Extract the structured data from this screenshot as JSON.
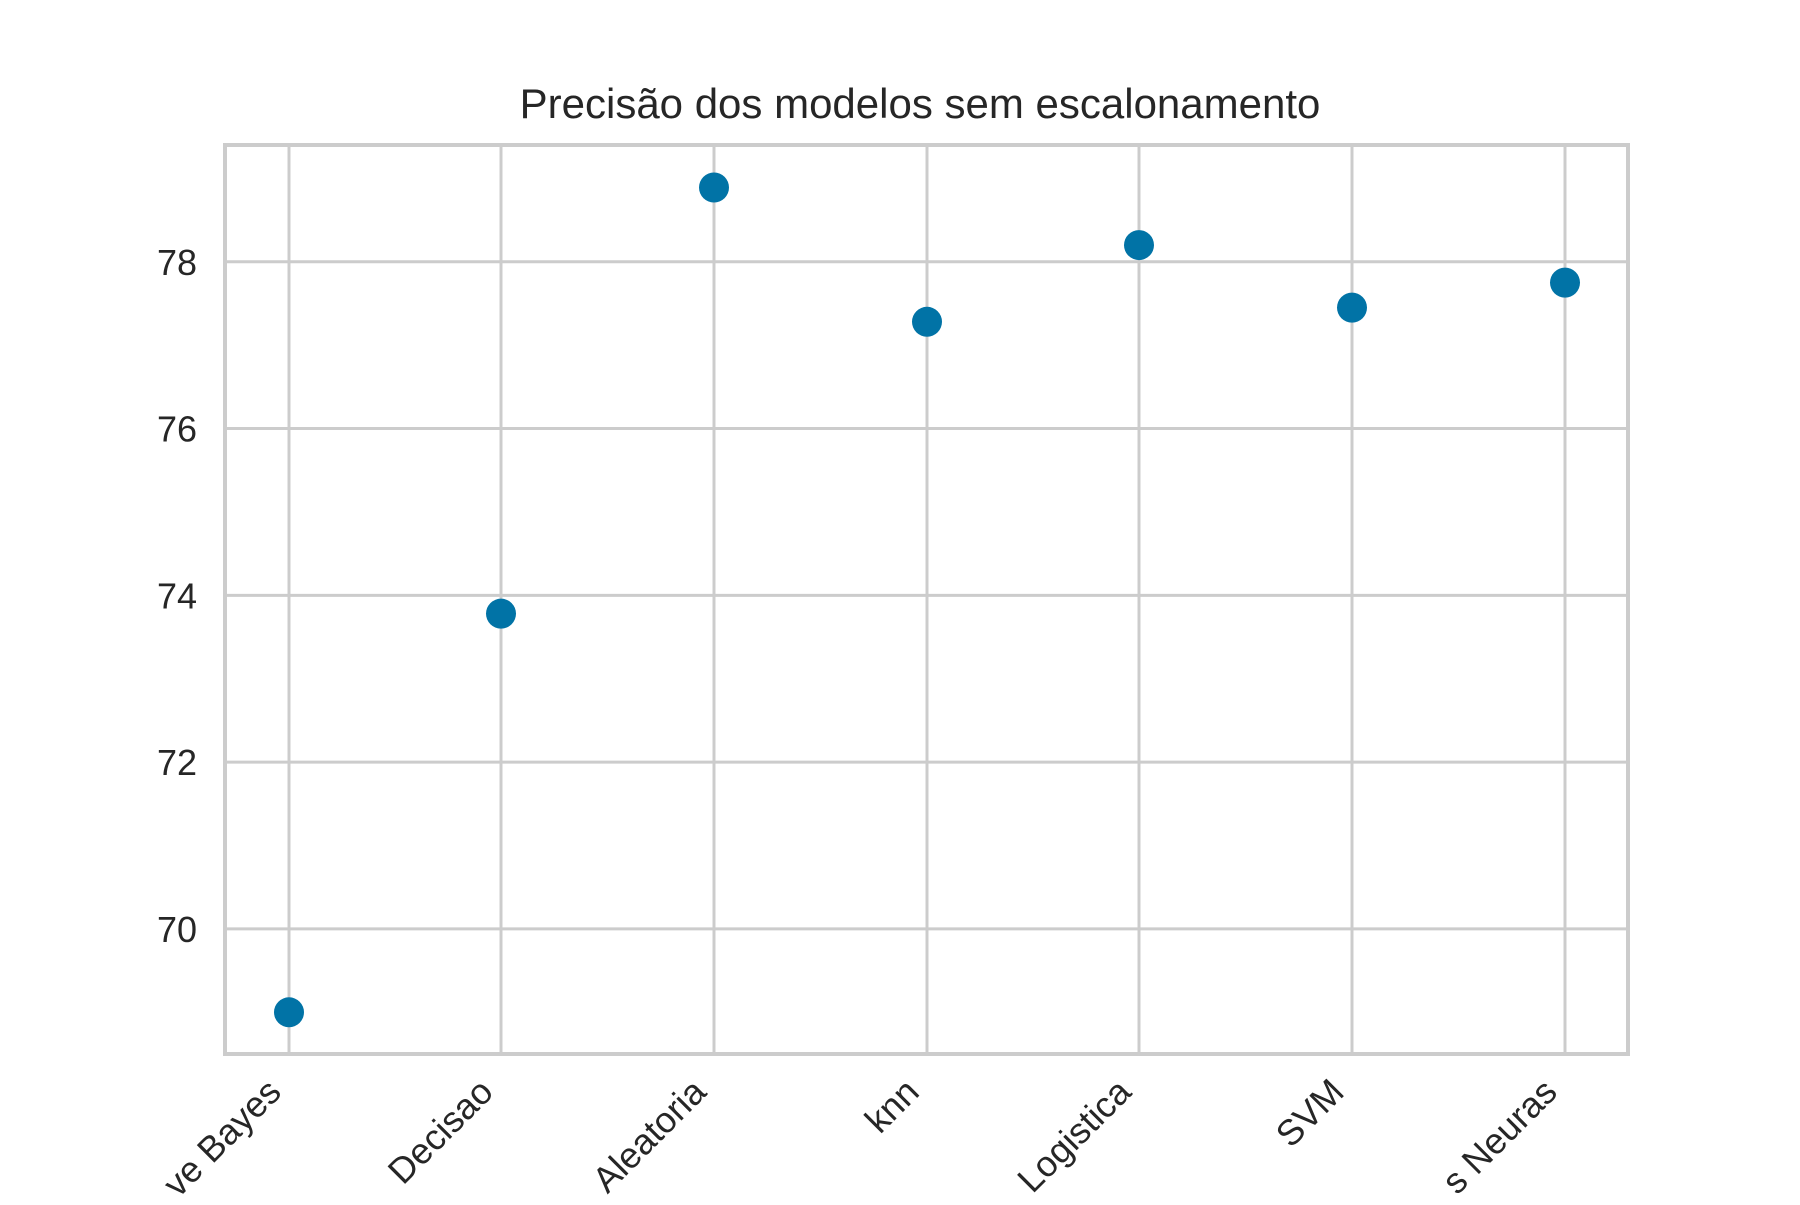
{
  "chart_data": {
    "type": "scatter",
    "title": "Precisão dos modelos sem escalonamento",
    "xlabel": "",
    "ylabel": "",
    "categories": [
      "ve Bayes",
      "Decisao",
      "Aleatoria",
      "knn",
      "Logistica",
      "SVM",
      "s Neuras"
    ],
    "values": [
      69.0,
      73.78,
      78.89,
      77.28,
      78.2,
      77.45,
      77.75
    ],
    "ylim": [
      68.5,
      79.4
    ],
    "yticks": [
      70,
      72,
      74,
      76,
      78
    ],
    "grid": true,
    "legend": "none",
    "colors": {
      "point": "#0173a6",
      "grid": "#cccccc",
      "frame": "#cccccc",
      "text": "#262626"
    }
  }
}
